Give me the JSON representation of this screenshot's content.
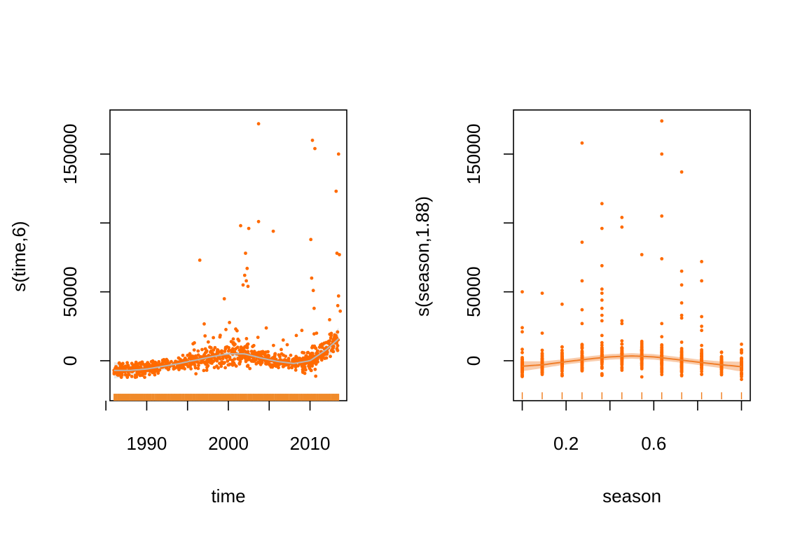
{
  "figure": {
    "colors": {
      "points": "#ff6a00",
      "smooth_time": "#b8b8b8",
      "band_time": "#e6e6e6",
      "smooth_season": "#f07e2a",
      "band_season": "#f6b789",
      "rug_time": "#f08a2a",
      "rug_season": "#f07a18"
    }
  },
  "chart_data": [
    {
      "type": "scatter",
      "xlabel": "time",
      "ylabel": "s(time,6)",
      "xlim": [
        1985.5,
        2014.5
      ],
      "ylim": [
        -29000,
        182000
      ],
      "x_ticks": [
        1985,
        1990,
        1995,
        2000,
        2005,
        2010
      ],
      "x_tick_labels": [
        "1990",
        "2000",
        "2010"
      ],
      "x_tick_label_values": [
        1990,
        2000,
        2010
      ],
      "y_ticks": [
        0,
        50000,
        100000,
        150000
      ],
      "y_tick_labels": [
        "0",
        "50000",
        "150000"
      ],
      "y_tick_label_values": [
        0,
        50000,
        150000
      ],
      "smooth": {
        "x": [
          1986,
          1988,
          1990,
          1992,
          1994,
          1996,
          1998,
          2000,
          2002,
          2004,
          2006,
          2008,
          2010,
          2012,
          2013.5
        ],
        "y": [
          -7000,
          -7000,
          -6000,
          -4000,
          -2000,
          500,
          3000,
          5000,
          5000,
          2000,
          -500,
          -2000,
          0,
          8000,
          16000
        ],
        "se": [
          3000,
          2000,
          1600,
          1400,
          1300,
          1300,
          1300,
          1400,
          1400,
          1400,
          1400,
          1500,
          1800,
          2500,
          4000
        ]
      },
      "points": [
        {
          "x": 1996.5,
          "y": 73000
        },
        {
          "x": 1999.5,
          "y": 45000
        },
        {
          "x": 2001.5,
          "y": 98000
        },
        {
          "x": 2002.1,
          "y": 78000
        },
        {
          "x": 2002.5,
          "y": 96000
        },
        {
          "x": 2002.3,
          "y": 67000
        },
        {
          "x": 2002.0,
          "y": 62000
        },
        {
          "x": 2002.2,
          "y": 58000
        },
        {
          "x": 2001.8,
          "y": 55000
        },
        {
          "x": 2002.4,
          "y": 54000
        },
        {
          "x": 2003.7,
          "y": 101000
        },
        {
          "x": 2003.7,
          "y": 172000
        },
        {
          "x": 2005.5,
          "y": 94000
        },
        {
          "x": 2010.3,
          "y": 160000
        },
        {
          "x": 2010.6,
          "y": 154000
        },
        {
          "x": 2013.5,
          "y": 150000
        },
        {
          "x": 2013.2,
          "y": 123000
        },
        {
          "x": 2010.1,
          "y": 88000
        },
        {
          "x": 2013.3,
          "y": 78000
        },
        {
          "x": 2013.6,
          "y": 77000
        },
        {
          "x": 2010.2,
          "y": 60000
        },
        {
          "x": 2010.4,
          "y": 51000
        },
        {
          "x": 2013.5,
          "y": 47000
        },
        {
          "x": 2010.5,
          "y": 38000
        },
        {
          "x": 2013.4,
          "y": 40000
        },
        {
          "x": 2013.7,
          "y": 36000
        },
        {
          "x": 2009.0,
          "y": 22000
        },
        {
          "x": 2010.8,
          "y": 20000
        }
      ],
      "rug_x_range": [
        1986,
        2013.5
      ]
    },
    {
      "type": "scatter",
      "xlabel": "season",
      "ylabel": "s(season,1.88)",
      "xlim": [
        -0.04,
        1.04
      ],
      "ylim": [
        -29000,
        182000
      ],
      "x_ticks": [
        0.0,
        0.2,
        0.4,
        0.6,
        0.8,
        1.0
      ],
      "x_tick_labels": [
        "0.2",
        "0.6"
      ],
      "x_tick_label_values": [
        0.2,
        0.6
      ],
      "y_ticks": [
        0,
        50000,
        100000,
        150000
      ],
      "y_tick_labels": [
        "0",
        "50000",
        "150000"
      ],
      "y_tick_label_values": [
        0,
        50000,
        150000
      ],
      "columns": [
        0.0,
        0.0909,
        0.1818,
        0.2727,
        0.3636,
        0.4545,
        0.5455,
        0.6364,
        0.7273,
        0.8182,
        0.9091,
        1.0
      ],
      "smooth": {
        "x": [
          0.0,
          0.1,
          0.2,
          0.3,
          0.4,
          0.5,
          0.6,
          0.7,
          0.8,
          0.9,
          1.0
        ],
        "y": [
          -4000,
          -2800,
          -700,
          1200,
          2800,
          3500,
          2800,
          1000,
          -1000,
          -2800,
          -4300
        ],
        "se": [
          1800,
          1200,
          1000,
          1000,
          1000,
          1000,
          1000,
          1000,
          1000,
          1200,
          1800
        ]
      },
      "points": [
        {
          "x": 0.0,
          "y": 50000
        },
        {
          "x": 0.0,
          "y": 24000
        },
        {
          "x": 0.0,
          "y": 21000
        },
        {
          "x": 0.0909,
          "y": 49000
        },
        {
          "x": 0.0909,
          "y": 20000
        },
        {
          "x": 0.1818,
          "y": 41000
        },
        {
          "x": 0.2727,
          "y": 158000
        },
        {
          "x": 0.2727,
          "y": 86000
        },
        {
          "x": 0.2727,
          "y": 58000
        },
        {
          "x": 0.2727,
          "y": 37000
        },
        {
          "x": 0.2727,
          "y": 27000
        },
        {
          "x": 0.3636,
          "y": 114000
        },
        {
          "x": 0.3636,
          "y": 96000
        },
        {
          "x": 0.3636,
          "y": 69000
        },
        {
          "x": 0.3636,
          "y": 52000
        },
        {
          "x": 0.3636,
          "y": 49000
        },
        {
          "x": 0.3636,
          "y": 44000
        },
        {
          "x": 0.3636,
          "y": 38000
        },
        {
          "x": 0.3636,
          "y": 33000
        },
        {
          "x": 0.3636,
          "y": 29000
        },
        {
          "x": 0.4545,
          "y": 104000
        },
        {
          "x": 0.4545,
          "y": 97000
        },
        {
          "x": 0.4545,
          "y": 29000
        },
        {
          "x": 0.4545,
          "y": 27000
        },
        {
          "x": 0.5455,
          "y": 77000
        },
        {
          "x": 0.6364,
          "y": 174000
        },
        {
          "x": 0.6364,
          "y": 150000
        },
        {
          "x": 0.6364,
          "y": 105000
        },
        {
          "x": 0.6364,
          "y": 74000
        },
        {
          "x": 0.6364,
          "y": 27000
        },
        {
          "x": 0.7273,
          "y": 137000
        },
        {
          "x": 0.7273,
          "y": 65000
        },
        {
          "x": 0.7273,
          "y": 55000
        },
        {
          "x": 0.7273,
          "y": 42000
        },
        {
          "x": 0.7273,
          "y": 33000
        },
        {
          "x": 0.7273,
          "y": 31000
        },
        {
          "x": 0.8182,
          "y": 72000
        },
        {
          "x": 0.8182,
          "y": 58000
        },
        {
          "x": 0.8182,
          "y": 32000
        },
        {
          "x": 0.8182,
          "y": 25000
        },
        {
          "x": 0.8182,
          "y": 22000
        },
        {
          "x": 0.9091,
          "y": 6000
        },
        {
          "x": 1.0,
          "y": 12000
        }
      ]
    }
  ]
}
